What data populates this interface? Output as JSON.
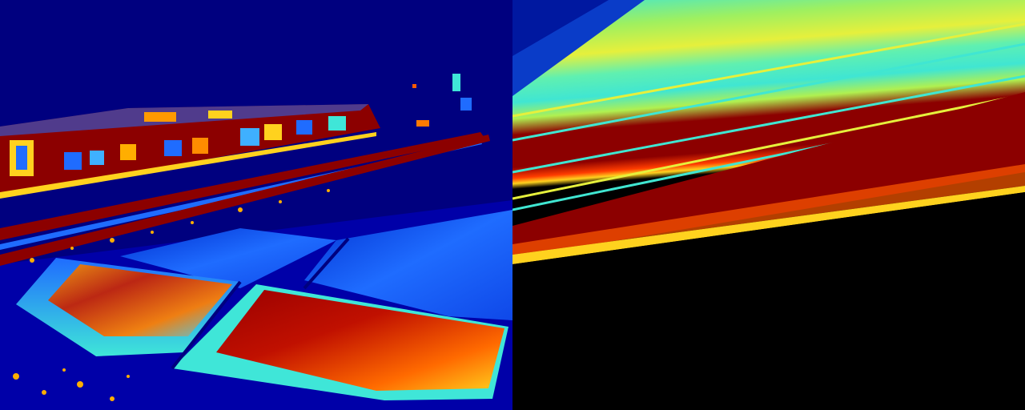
{
  "panels": [
    {
      "name": "thermal-jet-view",
      "colormap": "jet",
      "colors": {
        "background": "#00007f",
        "cold": "#0000c8",
        "cool": "#1f6cff",
        "mid": "#3ff0c8",
        "warm": "#ffd21e",
        "hot": "#ff5a00",
        "max": "#7f0000"
      }
    },
    {
      "name": "sky-ray-projection",
      "colormap": "jet",
      "colors": {
        "upper_band": "#0a3cc8",
        "cyan_band": "#40e6d2",
        "yellow_band": "#e6f03c",
        "red_band": "#8c0000",
        "ground_void": "#000000"
      }
    }
  ]
}
